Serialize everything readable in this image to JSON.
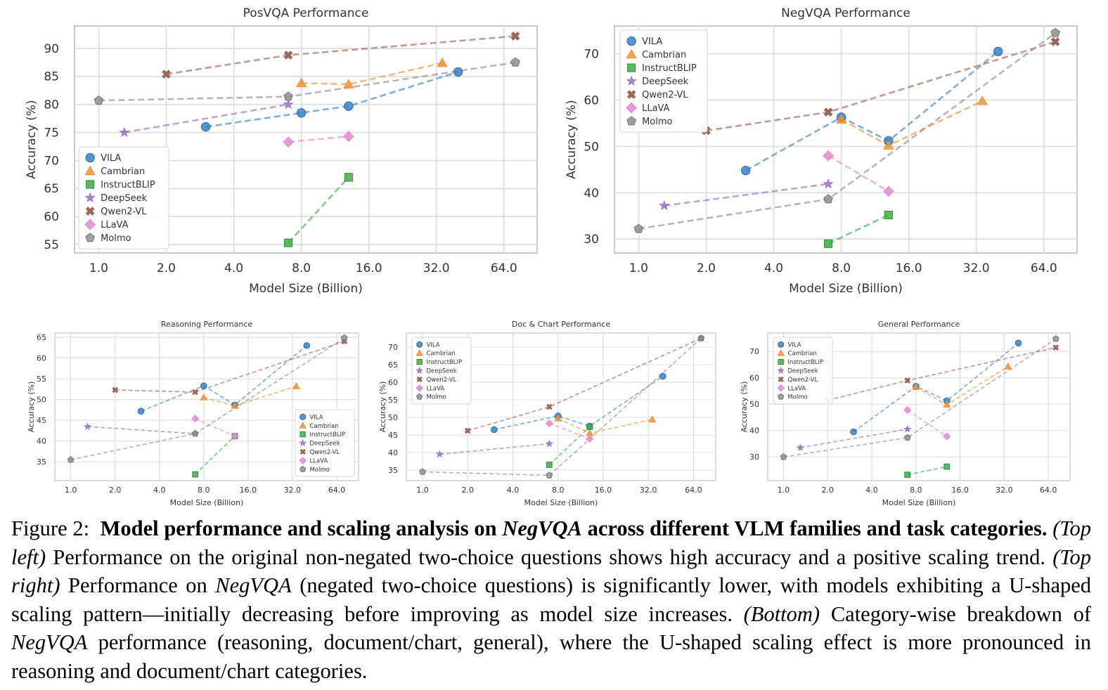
{
  "models": [
    "VILA",
    "Cambrian",
    "InstructBLIP",
    "DeepSeek",
    "Qwen2-VL",
    "LLaVA",
    "Molmo"
  ],
  "colors": {
    "VILA": "#3a82c4",
    "Cambrian": "#f0923a",
    "InstructBLIP": "#3fae4a",
    "DeepSeek": "#9a72c7",
    "Qwen2-VL": "#9a675a",
    "LLaVA": "#e38ad1",
    "Molmo": "#8f8f8f"
  },
  "markers": {
    "VILA": "circle",
    "Cambrian": "triangle",
    "InstructBLIP": "square",
    "DeepSeek": "star",
    "Qwen2-VL": "x",
    "LLaVA": "diamond",
    "Molmo": "pentagon"
  },
  "xlabel": "Model Size (Billion)",
  "ylabel": "Accuracy (%)",
  "xticks": [
    1,
    2,
    4,
    8,
    16,
    32,
    64
  ],
  "xtick_labels": [
    "1.0",
    "2.0",
    "4.0",
    "8.0",
    "16.0",
    "32.0",
    "64.0"
  ],
  "chart_data": [
    {
      "type": "scatter",
      "title": "PosVQA Performance",
      "x_scale": "log2",
      "xlim": [
        0.78,
        90
      ],
      "ylim": [
        53.5,
        94
      ],
      "yticks": [
        55,
        60,
        65,
        70,
        75,
        80,
        85,
        90
      ],
      "legend": "bottom-left",
      "grid": true,
      "series": [
        {
          "name": "VILA",
          "x": [
            3,
            8,
            13,
            40
          ],
          "y": [
            76.0,
            78.5,
            79.7,
            85.8
          ]
        },
        {
          "name": "Cambrian",
          "x": [
            8,
            13,
            34
          ],
          "y": [
            83.8,
            83.6,
            87.4
          ]
        },
        {
          "name": "InstructBLIP",
          "x": [
            7,
            13
          ],
          "y": [
            55.3,
            67.0
          ]
        },
        {
          "name": "DeepSeek",
          "x": [
            1.3,
            7
          ],
          "y": [
            75.0,
            80.0
          ]
        },
        {
          "name": "Qwen2-VL",
          "x": [
            2,
            7,
            72
          ],
          "y": [
            85.4,
            88.8,
            92.2
          ]
        },
        {
          "name": "LLaVA",
          "x": [
            7,
            13
          ],
          "y": [
            73.3,
            74.3
          ]
        },
        {
          "name": "Molmo",
          "x": [
            1,
            7,
            72
          ],
          "y": [
            80.7,
            81.4,
            87.5
          ]
        }
      ]
    },
    {
      "type": "scatter",
      "title": "NegVQA Performance",
      "x_scale": "log2",
      "xlim": [
        0.78,
        90
      ],
      "ylim": [
        27,
        76
      ],
      "yticks": [
        30,
        40,
        50,
        60,
        70
      ],
      "legend": "top-left",
      "grid": true,
      "series": [
        {
          "name": "VILA",
          "x": [
            3,
            8,
            13,
            40
          ],
          "y": [
            44.8,
            56.3,
            51.2,
            70.5
          ]
        },
        {
          "name": "Cambrian",
          "x": [
            8,
            13,
            34
          ],
          "y": [
            55.8,
            50.2,
            59.8
          ]
        },
        {
          "name": "InstructBLIP",
          "x": [
            7,
            13
          ],
          "y": [
            29.0,
            35.2
          ]
        },
        {
          "name": "DeepSeek",
          "x": [
            1.3,
            7
          ],
          "y": [
            37.2,
            41.9
          ]
        },
        {
          "name": "Qwen2-VL",
          "x": [
            2,
            7,
            72
          ],
          "y": [
            53.4,
            57.4,
            72.6
          ]
        },
        {
          "name": "LLaVA",
          "x": [
            7,
            13
          ],
          "y": [
            48.0,
            40.3
          ]
        },
        {
          "name": "Molmo",
          "x": [
            1,
            7,
            72
          ],
          "y": [
            32.2,
            38.6,
            74.5
          ]
        }
      ]
    },
    {
      "type": "scatter",
      "title": "Reasoning Performance",
      "x_scale": "log2",
      "xlim": [
        0.78,
        90
      ],
      "ylim": [
        30.5,
        66
      ],
      "yticks": [
        35,
        40,
        45,
        50,
        55,
        60,
        65
      ],
      "legend": "bottom-right",
      "grid": true,
      "series": [
        {
          "name": "VILA",
          "x": [
            3,
            8,
            13,
            40
          ],
          "y": [
            47.2,
            53.3,
            48.7,
            63.0
          ]
        },
        {
          "name": "Cambrian",
          "x": [
            8,
            13,
            34
          ],
          "y": [
            50.5,
            48.5,
            53.2
          ]
        },
        {
          "name": "InstructBLIP",
          "x": [
            7,
            13
          ],
          "y": [
            32.0,
            41.2
          ]
        },
        {
          "name": "DeepSeek",
          "x": [
            1.3,
            7
          ],
          "y": [
            43.5,
            41.8
          ]
        },
        {
          "name": "Qwen2-VL",
          "x": [
            2,
            7,
            72
          ],
          "y": [
            52.3,
            51.8,
            64.0
          ]
        },
        {
          "name": "LLaVA",
          "x": [
            7,
            13
          ],
          "y": [
            45.4,
            41.2
          ]
        },
        {
          "name": "Molmo",
          "x": [
            1,
            7,
            72
          ],
          "y": [
            35.5,
            41.8,
            64.8
          ]
        }
      ]
    },
    {
      "type": "scatter",
      "title": "Doc & Chart Performance",
      "x_scale": "log2",
      "xlim": [
        0.78,
        90
      ],
      "ylim": [
        32,
        74
      ],
      "yticks": [
        35,
        40,
        45,
        50,
        55,
        60,
        65,
        70
      ],
      "legend": "top-left",
      "grid": true,
      "series": [
        {
          "name": "VILA",
          "x": [
            3,
            8,
            13,
            40
          ],
          "y": [
            46.5,
            50.4,
            47.5,
            61.7
          ]
        },
        {
          "name": "Cambrian",
          "x": [
            8,
            13,
            34
          ],
          "y": [
            49.7,
            45.5,
            49.4
          ]
        },
        {
          "name": "InstructBLIP",
          "x": [
            7,
            13
          ],
          "y": [
            36.5,
            47.3
          ]
        },
        {
          "name": "DeepSeek",
          "x": [
            1.3,
            7
          ],
          "y": [
            39.5,
            42.5
          ]
        },
        {
          "name": "Qwen2-VL",
          "x": [
            2,
            7,
            72
          ],
          "y": [
            46.2,
            53.0,
            72.5
          ]
        },
        {
          "name": "LLaVA",
          "x": [
            7,
            13
          ],
          "y": [
            48.3,
            43.9
          ]
        },
        {
          "name": "Molmo",
          "x": [
            1,
            7,
            72
          ],
          "y": [
            34.5,
            33.5,
            72.5
          ]
        }
      ]
    },
    {
      "type": "scatter",
      "title": "General Performance",
      "x_scale": "log2",
      "xlim": [
        0.78,
        90
      ],
      "ylim": [
        21,
        77
      ],
      "yticks": [
        30,
        40,
        50,
        60,
        70
      ],
      "legend": "top-left",
      "grid": true,
      "series": [
        {
          "name": "VILA",
          "x": [
            3,
            8,
            13,
            40
          ],
          "y": [
            39.5,
            56.8,
            51.3,
            73.2
          ]
        },
        {
          "name": "Cambrian",
          "x": [
            8,
            13,
            34
          ],
          "y": [
            56.5,
            49.8,
            64.3
          ]
        },
        {
          "name": "InstructBLIP",
          "x": [
            7,
            13
          ],
          "y": [
            23.2,
            26.3
          ]
        },
        {
          "name": "DeepSeek",
          "x": [
            1.3,
            7
          ],
          "y": [
            33.5,
            40.5
          ]
        },
        {
          "name": "Qwen2-VL",
          "x": [
            2,
            7,
            72
          ],
          "y": [
            51.5,
            59.0,
            71.5
          ]
        },
        {
          "name": "LLaVA",
          "x": [
            7,
            13
          ],
          "y": [
            47.8,
            37.8
          ]
        },
        {
          "name": "Molmo",
          "x": [
            1,
            7,
            72
          ],
          "y": [
            30.0,
            37.3,
            74.8
          ]
        }
      ]
    }
  ],
  "caption": {
    "figure_label": "Figure 2:",
    "title": "Model performance and scaling analysis on",
    "title_em": "NegVQA",
    "title_rest": "across different VLM families and task categories.",
    "top_left_label": "(Top left)",
    "top_left_text": "Performance on the original non-negated two-choice questions shows high accuracy and a positive scaling trend.",
    "top_right_label": "(Top right)",
    "top_right_text_a": "Performance on",
    "top_right_em": "NegVQA",
    "top_right_text_b": "(negated two-choice questions) is significantly lower, with models exhibiting a U-shaped scaling pattern—initially decreasing before improving as model size increases.",
    "bottom_label": "(Bottom)",
    "bottom_text_a": "Category-wise breakdown of",
    "bottom_em": "NegVQA",
    "bottom_text_b": "performance (reasoning, document/chart, general), where the U-shaped scaling effect is more pronounced in reasoning and document/chart categories."
  }
}
